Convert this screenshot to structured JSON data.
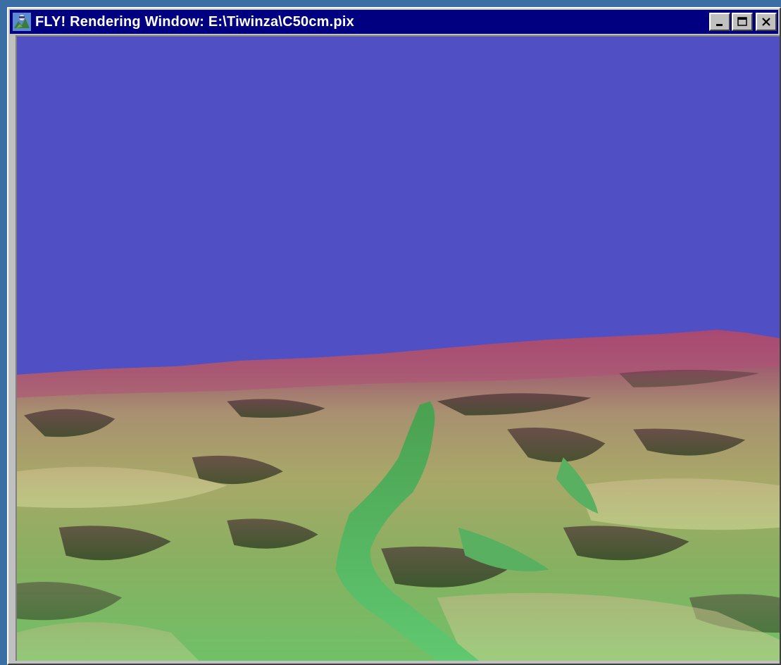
{
  "window": {
    "title": "FLY! Rendering Window: E:\\Tiwinza\\C50cm.pix",
    "controls": {
      "minimize": "minimize-icon",
      "maximize": "maximize-icon",
      "close": "close-icon"
    }
  },
  "colors": {
    "desktop": "#3a6ea5",
    "titlebar": "#000080",
    "sky": "#5050c4",
    "ridge_high": "#a0406a",
    "slope_mid": "#a8a060",
    "valley_low": "#60c060"
  }
}
